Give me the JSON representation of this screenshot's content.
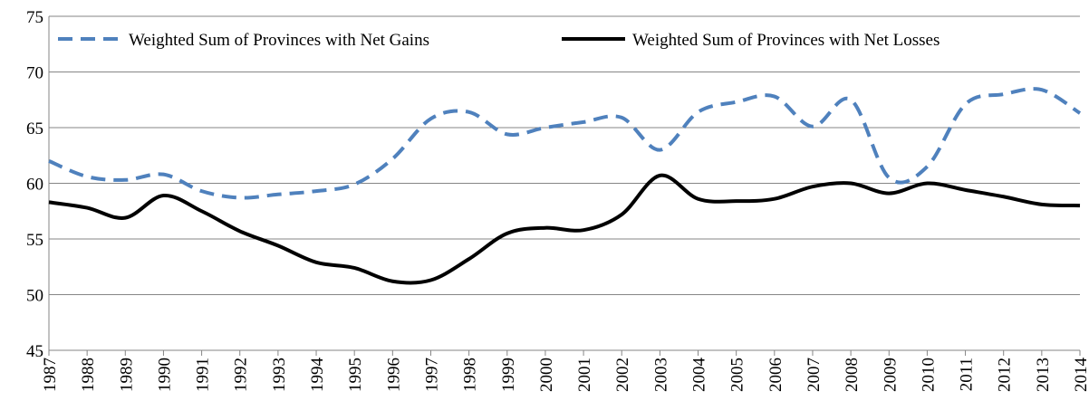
{
  "chart_data": {
    "type": "line",
    "categories": [
      "1987",
      "1988",
      "1989",
      "1990",
      "1991",
      "1992",
      "1993",
      "1994",
      "1995",
      "1996",
      "1997",
      "1998",
      "1999",
      "2000",
      "2001",
      "2002",
      "2003",
      "2004",
      "2005",
      "2006",
      "2007",
      "2008",
      "2009",
      "2010",
      "2011",
      "2012",
      "2013",
      "2014"
    ],
    "series": [
      {
        "name": "Weighted Sum of Provinces with Net Gains",
        "color": "#4f81bd",
        "dashed": true,
        "values": [
          62.0,
          60.6,
          60.3,
          60.8,
          59.3,
          58.7,
          59.0,
          59.3,
          59.9,
          62.2,
          65.8,
          66.4,
          64.4,
          65.0,
          65.5,
          65.9,
          63.0,
          66.4,
          67.3,
          67.8,
          65.1,
          67.5,
          60.5,
          61.5,
          67.1,
          68.0,
          68.4,
          66.3
        ]
      },
      {
        "name": "Weighted Sum of Provinces with Net Losses",
        "color": "#000000",
        "dashed": false,
        "values": [
          58.3,
          57.8,
          56.9,
          58.9,
          57.5,
          55.7,
          54.4,
          52.9,
          52.4,
          51.2,
          51.3,
          53.2,
          55.5,
          56.0,
          55.8,
          57.2,
          60.7,
          58.6,
          58.4,
          58.6,
          59.7,
          60.0,
          59.1,
          60.0,
          59.4,
          58.8,
          58.1,
          58.0
        ]
      }
    ],
    "ylim": [
      45,
      75
    ],
    "yticks": [
      45,
      50,
      55,
      60,
      65,
      70,
      75
    ],
    "grid": true,
    "legend": "top"
  }
}
